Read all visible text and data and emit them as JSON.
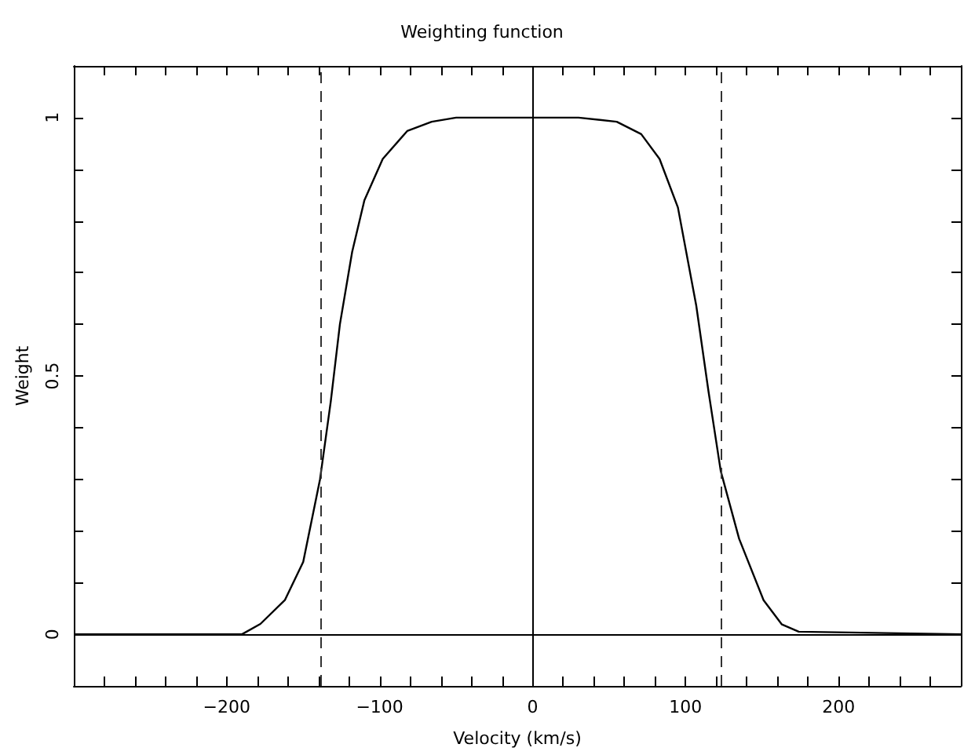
{
  "chart_data": {
    "type": "line",
    "title": "Weighting function",
    "xlabel": "Velocity (km/s)",
    "ylabel": "Weight",
    "x": [
      -300,
      -190,
      -178,
      -162,
      -150,
      -139,
      -132,
      -126,
      -118,
      -110,
      -98,
      -82,
      -66,
      -50,
      0,
      30,
      55,
      71,
      83,
      95,
      107,
      115,
      123,
      135,
      151,
      163,
      174,
      280
    ],
    "series": [
      {
        "color": "#000000",
        "values": [
          0,
          0,
          0.02,
          0.066,
          0.14,
          0.3,
          0.45,
          0.6,
          0.74,
          0.84,
          0.92,
          0.974,
          0.992,
          1,
          1,
          1,
          0.992,
          0.968,
          0.92,
          0.826,
          0.636,
          0.47,
          0.316,
          0.185,
          0.066,
          0.019,
          0.005,
          0
        ]
      }
    ],
    "xlim": [
      -300,
      280
    ],
    "xticks": [
      {
        "value": -280,
        "label": null
      },
      {
        "value": -260,
        "label": null
      },
      {
        "value": -240,
        "label": null
      },
      {
        "value": -220,
        "label": null
      },
      {
        "value": -200,
        "label": "−200"
      },
      {
        "value": -180,
        "label": null
      },
      {
        "value": -160,
        "label": null
      },
      {
        "value": -140,
        "label": null
      },
      {
        "value": -120,
        "label": null
      },
      {
        "value": -100,
        "label": "−100"
      },
      {
        "value": -80,
        "label": null
      },
      {
        "value": -60,
        "label": null
      },
      {
        "value": -40,
        "label": null
      },
      {
        "value": -20,
        "label": null
      },
      0,
      {
        "value": 20,
        "label": null
      },
      {
        "value": 40,
        "label": null
      },
      {
        "value": 60,
        "label": null
      },
      {
        "value": 80,
        "label": null
      },
      100,
      {
        "value": 120,
        "label": null
      },
      {
        "value": 140,
        "label": null
      },
      {
        "value": 160,
        "label": null
      },
      {
        "value": 180,
        "label": null
      },
      200,
      {
        "value": 220,
        "label": null
      },
      {
        "value": 240,
        "label": null
      },
      {
        "value": 260,
        "label": null
      }
    ],
    "ylim": [
      -0.1,
      1.1
    ],
    "yticks": [
      0,
      {
        "value": 0.1,
        "label": null
      },
      {
        "value": 0.2,
        "label": null
      },
      {
        "value": 0.3,
        "label": null
      },
      {
        "value": 0.4,
        "label": null
      },
      0.5,
      {
        "value": 0.6,
        "label": null
      },
      {
        "value": 0.7,
        "label": null
      },
      {
        "value": 0.8,
        "label": null
      },
      {
        "value": 0.9,
        "label": null
      },
      1
    ],
    "ref_lines": [
      {
        "axis": "x",
        "value": 0,
        "color": "#000000",
        "line_style": "solid"
      },
      {
        "axis": "y",
        "value": 0,
        "color": "#000000",
        "line_style": "solid"
      },
      {
        "axis": "x",
        "value": -139,
        "color": "#333333",
        "line_style": "dashed"
      },
      {
        "axis": "x",
        "value": 123,
        "color": "#333333",
        "line_style": "dashed"
      }
    ]
  }
}
